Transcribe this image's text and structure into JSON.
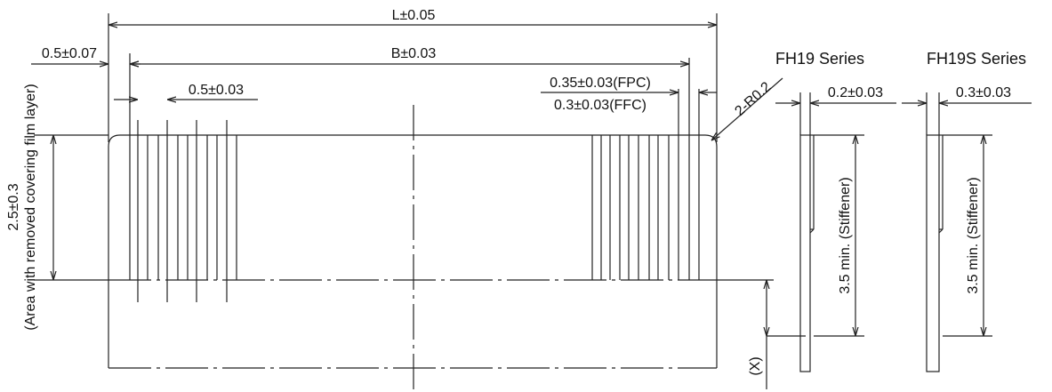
{
  "dimensions": {
    "overall_length": "L±0.05",
    "edge_offset": "0.5±0.07",
    "contact_span": "B±0.03",
    "pitch": "0.5±0.03",
    "conductor_width_fpc": "0.35±0.03(FPC)",
    "conductor_width_ffc": "0.3±0.03(FFC)",
    "corner_radius": "2-R0.2",
    "exposed_area_value": "2.5±0.3",
    "exposed_area_note": "(Area with removed covering film layer)",
    "x_marker": "(X)"
  },
  "series": [
    {
      "name": "FH19 Series",
      "thickness": "0.2±0.03",
      "stiffener": "3.5 min. (Stiffener)"
    },
    {
      "name": "FH19S Series",
      "thickness": "0.3±0.03",
      "stiffener": "3.5 min. (Stiffener)"
    }
  ],
  "colors": {
    "line": "#222222",
    "background": "#ffffff"
  }
}
